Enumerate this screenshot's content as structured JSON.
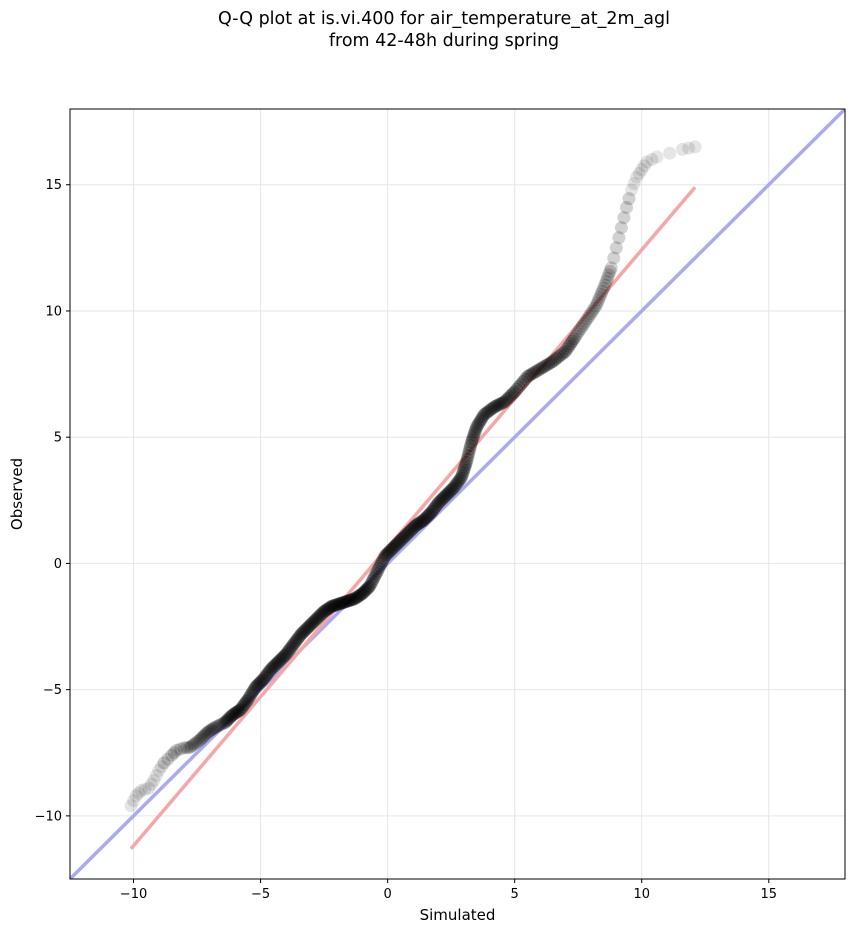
{
  "chart_data": {
    "type": "scatter",
    "title_line1": "Q-Q plot at is.vi.400 for air_temperature_at_2m_agl",
    "title_line2": "from 42-48h during spring",
    "xlabel": "Simulated",
    "ylabel": "Observed",
    "xlim": [
      -12.5,
      18
    ],
    "ylim": [
      -12.5,
      18
    ],
    "xticks": [
      -10,
      -5,
      0,
      5,
      10,
      15
    ],
    "yticks": [
      -10,
      -5,
      0,
      5,
      10,
      15
    ],
    "xtick_labels": [
      "−10",
      "−5",
      "0",
      "5",
      "10",
      "15"
    ],
    "ytick_labels": [
      "−10",
      "−5",
      "0",
      "5",
      "10",
      "15"
    ],
    "grid": true,
    "reference_line": {
      "x": [
        -12.5,
        18
      ],
      "y": [
        -12.5,
        18
      ],
      "color": "#aaaaf0"
    },
    "fit_line": {
      "x": [
        -10.1,
        12.1
      ],
      "y": [
        -11.3,
        14.9
      ],
      "color": "#f5a6a6"
    },
    "point_color": "#000000",
    "quantile_curve": {
      "x": [
        -10.1,
        -9.9,
        -9.7,
        -9.4,
        -9.2,
        -9.0,
        -8.8,
        -8.5,
        -8.3,
        -8.0,
        -7.8,
        -7.4,
        -7.1,
        -6.8,
        -6.4,
        -6.1,
        -5.8,
        -5.5,
        -5.2,
        -4.9,
        -4.6,
        -4.3,
        -4.0,
        -3.7,
        -3.4,
        -3.1,
        -2.8,
        -2.5,
        -2.2,
        -1.9,
        -1.6,
        -1.3,
        -1.0,
        -0.7,
        -0.4,
        -0.1,
        0.2,
        0.5,
        0.8,
        1.1,
        1.4,
        1.7,
        2.0,
        2.3,
        2.6,
        2.9,
        3.1,
        3.3,
        3.5,
        3.8,
        4.2,
        4.6,
        5.0,
        5.5,
        6.0,
        6.5,
        7.0,
        7.4,
        7.8,
        8.2,
        8.5,
        8.8,
        9.0,
        9.2,
        9.4,
        9.6,
        9.8,
        10.0,
        10.2,
        10.6,
        11.6,
        12.1
      ],
      "y": [
        -9.6,
        -9.2,
        -9.0,
        -8.9,
        -8.6,
        -8.2,
        -7.9,
        -7.6,
        -7.4,
        -7.3,
        -7.3,
        -7.0,
        -6.7,
        -6.5,
        -6.3,
        -6.0,
        -5.8,
        -5.4,
        -4.9,
        -4.6,
        -4.2,
        -3.9,
        -3.6,
        -3.2,
        -2.8,
        -2.5,
        -2.2,
        -1.9,
        -1.7,
        -1.6,
        -1.5,
        -1.4,
        -1.2,
        -0.9,
        -0.3,
        0.3,
        0.6,
        0.9,
        1.2,
        1.5,
        1.7,
        2.0,
        2.4,
        2.7,
        3.0,
        3.4,
        4.0,
        4.8,
        5.4,
        5.9,
        6.2,
        6.4,
        6.8,
        7.4,
        7.7,
        8.0,
        8.4,
        9.0,
        9.6,
        10.2,
        10.9,
        11.7,
        12.5,
        13.3,
        14.1,
        14.8,
        15.3,
        15.6,
        15.9,
        16.1,
        16.4,
        16.5
      ]
    }
  }
}
